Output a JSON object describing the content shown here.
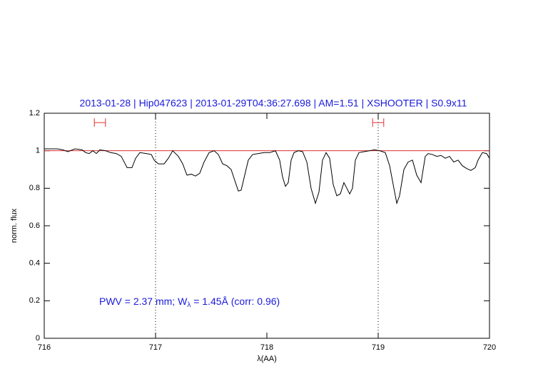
{
  "chart_data": {
    "type": "line",
    "title": "2013-01-28 | Hip047623 | 2013-01-29T04:36:27.698 | AM=1.51 | XSHOOTER | S0.9x11",
    "x_label": "λ(AA)",
    "y_label": "norm. flux",
    "annotation_prefix": "PWV = 2.37 mm; W",
    "annotation_subscript": "λ",
    "annotation_suffix": " = 1.45Å (corr: 0.96)",
    "xlim": [
      716,
      720
    ],
    "ylim": [
      0,
      1.2
    ],
    "xticks": [
      716,
      717,
      718,
      719,
      720
    ],
    "yticks": [
      0,
      0.2,
      0.4,
      0.6,
      0.8,
      1,
      1.2
    ],
    "reference_line": {
      "y": 1,
      "color": "#e03030"
    },
    "vlines": [
      717,
      719
    ],
    "markers": [
      {
        "x": 716.5,
        "xerr": 0.05,
        "y": 1.15
      },
      {
        "x": 719,
        "xerr": 0.05,
        "y": 1.15
      }
    ],
    "marker_color": "#e03030",
    "series": [
      {
        "name": "spectrum",
        "color": "#000000",
        "x": [
          716.0,
          716.051,
          716.115,
          716.167,
          716.212,
          716.276,
          716.34,
          716.372,
          716.404,
          716.436,
          716.468,
          716.5,
          716.551,
          716.596,
          716.647,
          716.692,
          716.744,
          716.788,
          716.821,
          716.859,
          716.917,
          716.962,
          716.987,
          717.026,
          717.077,
          717.115,
          717.154,
          717.205,
          717.244,
          717.282,
          717.321,
          717.359,
          717.397,
          717.436,
          717.481,
          717.526,
          717.564,
          717.603,
          717.641,
          717.679,
          717.718,
          717.744,
          717.769,
          717.801,
          717.833,
          717.872,
          717.923,
          717.974,
          718.026,
          718.077,
          718.115,
          718.141,
          718.167,
          718.192,
          718.218,
          718.244,
          718.282,
          718.321,
          718.359,
          718.397,
          718.436,
          718.468,
          718.5,
          718.532,
          718.564,
          718.596,
          718.628,
          718.66,
          718.692,
          718.718,
          718.744,
          718.769,
          718.795,
          718.827,
          718.872,
          718.923,
          718.968,
          719.013,
          719.064,
          719.103,
          719.141,
          719.167,
          719.192,
          719.231,
          719.269,
          719.308,
          719.346,
          719.385,
          719.423,
          719.449,
          719.487,
          719.526,
          719.564,
          719.603,
          719.641,
          719.679,
          719.718,
          719.756,
          719.795,
          719.833,
          719.872,
          719.897,
          719.936,
          719.974,
          720.0
        ],
        "values": [
          1.01,
          1.01,
          1.01,
          1.005,
          0.995,
          1.01,
          1.005,
          0.99,
          0.985,
          1.0,
          0.985,
          1.005,
          1.0,
          0.99,
          0.985,
          0.97,
          0.91,
          0.91,
          0.96,
          0.99,
          0.985,
          0.98,
          0.95,
          0.93,
          0.93,
          0.96,
          1.0,
          0.97,
          0.93,
          0.87,
          0.875,
          0.865,
          0.88,
          0.94,
          0.99,
          1.0,
          0.98,
          0.93,
          0.92,
          0.9,
          0.83,
          0.785,
          0.79,
          0.87,
          0.95,
          0.98,
          0.985,
          0.99,
          0.99,
          1.0,
          0.95,
          0.86,
          0.81,
          0.83,
          0.95,
          0.99,
          1.0,
          0.995,
          0.94,
          0.8,
          0.72,
          0.78,
          0.95,
          0.99,
          0.96,
          0.82,
          0.76,
          0.77,
          0.83,
          0.8,
          0.77,
          0.8,
          0.95,
          0.99,
          0.995,
          1.0,
          1.005,
          1.0,
          0.99,
          0.92,
          0.8,
          0.72,
          0.76,
          0.9,
          0.94,
          0.95,
          0.87,
          0.83,
          0.97,
          0.985,
          0.98,
          0.97,
          0.975,
          0.96,
          0.97,
          0.94,
          0.95,
          0.92,
          0.905,
          0.895,
          0.91,
          0.95,
          0.99,
          0.985,
          0.96
        ]
      }
    ]
  }
}
